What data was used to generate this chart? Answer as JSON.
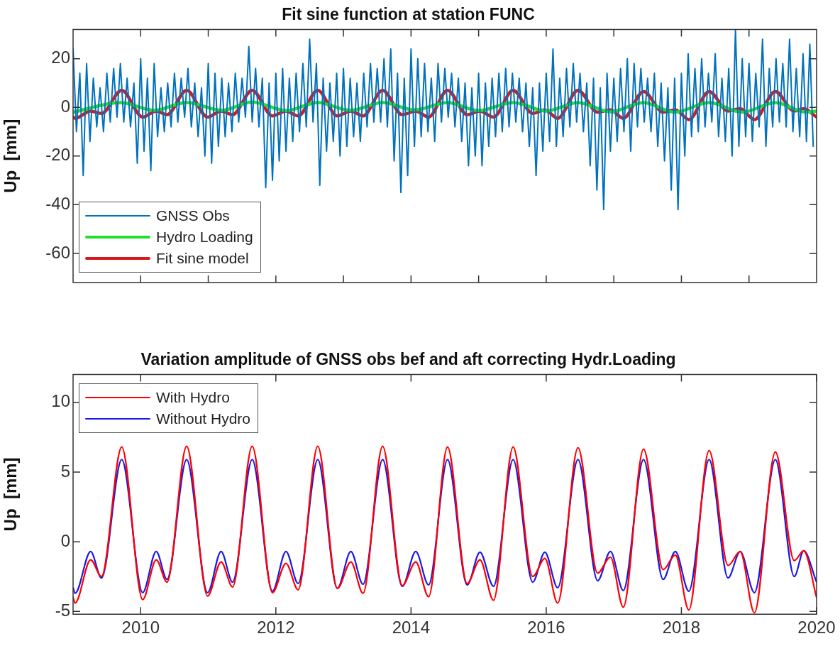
{
  "chart_data": [
    {
      "type": "line",
      "title": "Fit sine function at station FUNC",
      "ylabel": "Up  [mm]",
      "xlim": [
        2009,
        2020
      ],
      "ylim": [
        -72,
        32
      ],
      "xticks": [
        {
          "value": 2010,
          "label": null
        },
        {
          "value": 2011,
          "label": null
        },
        {
          "value": 2012,
          "label": null
        },
        {
          "value": 2013,
          "label": null
        },
        {
          "value": 2014,
          "label": null
        },
        {
          "value": 2015,
          "label": null
        },
        {
          "value": 2016,
          "label": null
        },
        {
          "value": 2017,
          "label": null
        },
        {
          "value": 2018,
          "label": null
        },
        {
          "value": 2019,
          "label": null
        }
      ],
      "yticks": [
        -60,
        -40,
        -20,
        0,
        20
      ],
      "tick_labels": "y",
      "legend": "bottom left",
      "marker": "none",
      "line_style": "solid",
      "series": [
        {
          "name": "GNSS Obs",
          "color": "#0072bd",
          "x": [
            2009.0,
            2009.05,
            2009.1,
            2009.15,
            2009.2,
            2009.25,
            2009.3,
            2009.35,
            2009.4,
            2009.45,
            2009.5,
            2009.55,
            2009.6,
            2009.65,
            2009.7,
            2009.75,
            2009.8,
            2009.85,
            2009.9,
            2009.95,
            2010.0,
            2010.05,
            2010.1,
            2010.15,
            2010.2,
            2010.25,
            2010.3,
            2010.35,
            2010.4,
            2010.45,
            2010.5,
            2010.55,
            2010.6,
            2010.65,
            2010.7,
            2010.75,
            2010.8,
            2010.85,
            2010.9,
            2010.95,
            2011.0,
            2011.05,
            2011.1,
            2011.15,
            2011.2,
            2011.25,
            2011.3,
            2011.35,
            2011.4,
            2011.45,
            2011.5,
            2011.55,
            2011.6,
            2011.65,
            2011.7,
            2011.75,
            2011.8,
            2011.85,
            2011.9,
            2011.95,
            2012.0,
            2012.05,
            2012.1,
            2012.15,
            2012.2,
            2012.25,
            2012.3,
            2012.35,
            2012.4,
            2012.45,
            2012.5,
            2012.55,
            2012.6,
            2012.65,
            2012.7,
            2012.75,
            2012.8,
            2012.85,
            2012.9,
            2012.95,
            2013.0,
            2013.05,
            2013.1,
            2013.15,
            2013.2,
            2013.25,
            2013.3,
            2013.35,
            2013.4,
            2013.45,
            2013.5,
            2013.55,
            2013.6,
            2013.65,
            2013.7,
            2013.75,
            2013.8,
            2013.85,
            2013.9,
            2013.95,
            2014.0,
            2014.05,
            2014.1,
            2014.15,
            2014.2,
            2014.25,
            2014.3,
            2014.35,
            2014.4,
            2014.45,
            2014.5,
            2014.55,
            2014.6,
            2014.65,
            2014.7,
            2014.75,
            2014.8,
            2014.85,
            2014.9,
            2014.95,
            2015.0,
            2015.05,
            2015.1,
            2015.15,
            2015.2,
            2015.25,
            2015.3,
            2015.35,
            2015.4,
            2015.45,
            2015.5,
            2015.55,
            2015.6,
            2015.65,
            2015.7,
            2015.75,
            2015.8,
            2015.85,
            2015.9,
            2015.95,
            2016.0,
            2016.05,
            2016.1,
            2016.15,
            2016.2,
            2016.25,
            2016.3,
            2016.35,
            2016.4,
            2016.45,
            2016.5,
            2016.55,
            2016.6,
            2016.65,
            2016.7,
            2016.75,
            2016.8,
            2016.85,
            2016.9,
            2016.95,
            2017.0,
            2017.05,
            2017.1,
            2017.15,
            2017.2,
            2017.25,
            2017.3,
            2017.35,
            2017.4,
            2017.45,
            2017.5,
            2017.55,
            2017.6,
            2017.65,
            2017.7,
            2017.75,
            2017.8,
            2017.85,
            2017.9,
            2017.95,
            2018.0,
            2018.05,
            2018.1,
            2018.15,
            2018.2,
            2018.25,
            2018.3,
            2018.35,
            2018.4,
            2018.45,
            2018.5,
            2018.55,
            2018.6,
            2018.65,
            2018.7,
            2018.75,
            2018.8,
            2018.85,
            2018.9,
            2018.95,
            2019.0,
            2019.05,
            2019.1,
            2019.15,
            2019.2,
            2019.25,
            2019.3,
            2019.35,
            2019.4,
            2019.45,
            2019.5,
            2019.55,
            2019.6,
            2019.65,
            2019.7,
            2019.75,
            2019.8,
            2019.85,
            2019.9,
            2019.95
          ],
          "values": [
            24,
            -10,
            14,
            -28,
            18,
            -14,
            12,
            -8,
            8,
            -10,
            14,
            -6,
            16,
            -4,
            18,
            -6,
            12,
            -8,
            10,
            -23,
            20,
            -18,
            12,
            -26,
            18,
            -12,
            8,
            -10,
            10,
            -8,
            14,
            -6,
            12,
            -4,
            16,
            -8,
            10,
            -12,
            8,
            -20,
            18,
            -23,
            14,
            -16,
            12,
            -12,
            10,
            -10,
            14,
            -6,
            12,
            -4,
            25,
            -6,
            16,
            -8,
            12,
            -33,
            10,
            -30,
            14,
            -22,
            16,
            -18,
            12,
            -14,
            14,
            -10,
            18,
            -8,
            28,
            -6,
            18,
            -32,
            12,
            -18,
            10,
            -14,
            14,
            -20,
            16,
            -16,
            12,
            -12,
            10,
            -14,
            14,
            -8,
            18,
            -6,
            16,
            -6,
            20,
            -8,
            24,
            -22,
            14,
            -35,
            12,
            -28,
            24,
            -16,
            20,
            -12,
            18,
            -10,
            12,
            -14,
            18,
            -6,
            16,
            -4,
            14,
            -8,
            12,
            -14,
            10,
            -24,
            8,
            -20,
            14,
            -24,
            10,
            -16,
            12,
            -12,
            14,
            -10,
            16,
            -8,
            14,
            -6,
            12,
            -10,
            10,
            -16,
            8,
            -28,
            10,
            -18,
            14,
            -14,
            24,
            -16,
            12,
            -12,
            16,
            -8,
            18,
            -6,
            14,
            -10,
            10,
            -24,
            12,
            -34,
            8,
            -42,
            14,
            -18,
            12,
            -14,
            16,
            -10,
            20,
            -18,
            18,
            -8,
            16,
            -6,
            12,
            -10,
            14,
            -16,
            10,
            -22,
            8,
            -34,
            12,
            -42,
            14,
            -20,
            22,
            -12,
            16,
            -10,
            20,
            -8,
            14,
            -6,
            22,
            -12,
            12,
            -14,
            16,
            -20,
            32,
            -16,
            20,
            -12,
            18,
            -14,
            14,
            -8,
            28,
            -16,
            16,
            -8,
            20,
            -6,
            18,
            -8,
            28,
            -10,
            16,
            -12,
            22,
            -14,
            26,
            -16
          ]
        },
        {
          "name": "Hydro Loading",
          "color": "#22e02a",
          "x": [
            2009.0,
            2009.7,
            2010.2,
            2010.68,
            2011.2,
            2011.65,
            2012.15,
            2012.62,
            2013.1,
            2013.58,
            2014.05,
            2014.54,
            2015.0,
            2015.51,
            2016.0,
            2016.47,
            2016.95,
            2017.44,
            2017.9,
            2018.41,
            2018.9,
            2019.39,
            2019.85,
            2020.0
          ],
          "values": [
            -2,
            2,
            -1.2,
            2,
            -1.2,
            2.2,
            -1.3,
            2,
            -1.2,
            2,
            -1,
            2,
            -1.3,
            2,
            -1.5,
            2,
            -1.8,
            2,
            -2,
            2,
            -2,
            2,
            -2,
            -1.5
          ]
        },
        {
          "name": "Fit sine model",
          "color": "#d7191c",
          "x": [
            2009.0,
            2009.03,
            2009.26,
            2009.42,
            2009.72,
            2010.03,
            2010.23,
            2010.39,
            2010.68,
            2010.99,
            2011.19,
            2011.36,
            2011.65,
            2011.95,
            2012.15,
            2012.33,
            2012.62,
            2012.91,
            2013.11,
            2013.29,
            2013.58,
            2013.87,
            2014.07,
            2014.26,
            2014.54,
            2014.83,
            2015.02,
            2015.22,
            2015.51,
            2015.8,
            2015.98,
            2016.17,
            2016.47,
            2016.76,
            2016.95,
            2017.14,
            2017.44,
            2017.73,
            2017.91,
            2018.11,
            2018.41,
            2018.69,
            2018.87,
            2019.08,
            2019.39,
            2019.67,
            2019.81,
            2020.0
          ],
          "values": [
            -4,
            -4.5,
            -1.5,
            -2.5,
            7,
            -4,
            -1.5,
            -3,
            7,
            -4,
            -1.5,
            -3,
            7,
            -3.5,
            -1.5,
            -3.5,
            7,
            -3.5,
            -1.5,
            -3.5,
            7,
            -3,
            -1.5,
            -4,
            7,
            -3,
            -1.5,
            -4,
            7,
            -2.5,
            -1,
            -4.5,
            7,
            -2,
            -1,
            -4.5,
            6.5,
            -2,
            -1,
            -5,
            6.5,
            -1.5,
            -0.5,
            -5,
            6.5,
            -1.5,
            -0.5,
            -4
          ]
        }
      ]
    },
    {
      "type": "line",
      "title": "Variation amplitude of GNSS obs bef and aft correcting Hydr.Loading",
      "ylabel": "Up  [mm]",
      "xlim": [
        2009,
        2020
      ],
      "ylim": [
        -5.2,
        12
      ],
      "xticks": [
        2010,
        2012,
        2014,
        2016,
        2018,
        2020
      ],
      "yticks": [
        -5,
        0,
        5,
        10
      ],
      "legend": "top left",
      "marker": "none",
      "line_style": "solid",
      "series": [
        {
          "name": "With Hydro",
          "color": "#ff0000",
          "x": [
            2009.0,
            2009.03,
            2009.26,
            2009.42,
            2009.72,
            2010.03,
            2010.23,
            2010.39,
            2010.68,
            2010.99,
            2011.19,
            2011.36,
            2011.65,
            2011.95,
            2012.15,
            2012.33,
            2012.62,
            2012.91,
            2013.11,
            2013.29,
            2013.58,
            2013.87,
            2014.07,
            2014.26,
            2014.54,
            2014.83,
            2015.02,
            2015.22,
            2015.51,
            2015.8,
            2015.98,
            2016.17,
            2016.47,
            2016.76,
            2016.95,
            2017.14,
            2017.44,
            2017.73,
            2017.91,
            2018.11,
            2018.41,
            2018.69,
            2018.87,
            2019.08,
            2019.39,
            2019.67,
            2019.81,
            2020.0
          ],
          "values": [
            -4.0,
            -4.4,
            -1.3,
            -2.5,
            6.8,
            -4.15,
            -1.3,
            -2.9,
            6.85,
            -3.9,
            -1.45,
            -3.25,
            6.85,
            -3.65,
            -1.55,
            -3.45,
            6.85,
            -3.35,
            -1.45,
            -3.7,
            6.85,
            -3.15,
            -1.45,
            -3.95,
            6.8,
            -3.0,
            -1.3,
            -4.2,
            6.8,
            -2.5,
            -1.2,
            -4.4,
            6.75,
            -2.25,
            -1.1,
            -4.7,
            6.65,
            -2.0,
            -0.95,
            -4.9,
            6.55,
            -1.7,
            -0.7,
            -5.1,
            6.45,
            -1.35,
            -0.65,
            -4.0
          ]
        },
        {
          "name": "Without Hydro",
          "color": "#1a1ae6",
          "x": [
            2009.0,
            2009.03,
            2009.26,
            2009.42,
            2009.72,
            2010.03,
            2010.23,
            2010.39,
            2010.68,
            2010.99,
            2011.19,
            2011.36,
            2011.65,
            2011.95,
            2012.15,
            2012.33,
            2012.62,
            2012.91,
            2013.11,
            2013.29,
            2013.58,
            2013.87,
            2014.07,
            2014.26,
            2014.54,
            2014.83,
            2015.02,
            2015.22,
            2015.51,
            2015.8,
            2015.98,
            2016.17,
            2016.47,
            2016.76,
            2016.95,
            2017.14,
            2017.44,
            2017.73,
            2017.91,
            2018.11,
            2018.41,
            2018.69,
            2018.87,
            2019.08,
            2019.39,
            2019.67,
            2019.81,
            2020.0
          ],
          "values": [
            -3.3,
            -3.7,
            -0.7,
            -2.6,
            5.9,
            -3.65,
            -0.7,
            -2.7,
            5.9,
            -3.65,
            -0.7,
            -2.9,
            5.9,
            -3.55,
            -0.7,
            -3.0,
            5.9,
            -3.35,
            -0.7,
            -3.05,
            5.9,
            -3.2,
            -0.7,
            -3.1,
            5.9,
            -3.1,
            -0.75,
            -3.2,
            5.9,
            -2.9,
            -0.75,
            -3.3,
            5.9,
            -2.8,
            -0.7,
            -3.5,
            5.9,
            -2.7,
            -0.7,
            -3.55,
            5.9,
            -2.6,
            -0.7,
            -3.65,
            5.9,
            -2.5,
            -0.65,
            -2.9
          ]
        }
      ]
    }
  ]
}
